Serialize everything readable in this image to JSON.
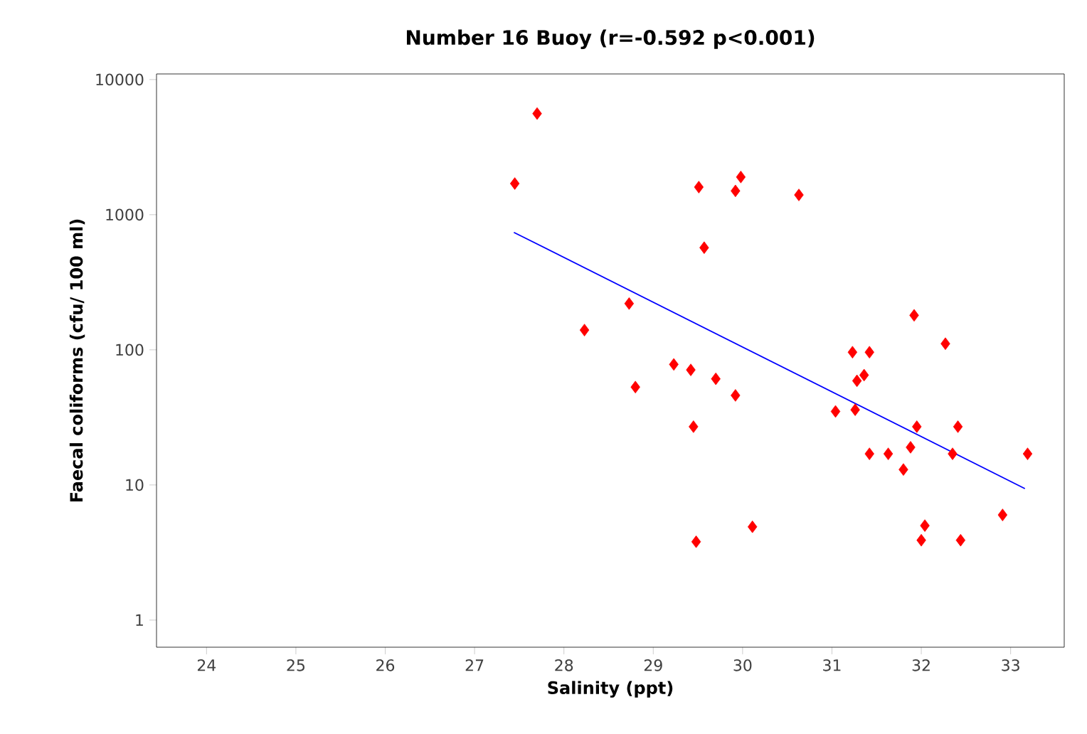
{
  "chart_data": {
    "type": "scatter",
    "title": "Number 16 Buoy (r=-0.592 p<0.001)",
    "xlabel": "Salinity (ppt)",
    "ylabel": "Faecal coliforms (cfu/ 100 ml)",
    "log": "y",
    "marker": "diamond",
    "xlim": [
      23.44,
      33.6
    ],
    "xticks": [
      24,
      25,
      26,
      27,
      28,
      29,
      30,
      31,
      32,
      33
    ],
    "ylim": [
      0.63,
      11000
    ],
    "yticks": [
      1,
      10,
      100,
      1000,
      10000
    ],
    "series": [
      {
        "color": "#ff0000",
        "x": [
          27.7,
          27.45,
          29.51,
          29.98,
          29.92,
          30.63,
          29.57,
          28.73,
          28.23,
          28.8,
          29.23,
          29.42,
          29.7,
          29.92,
          29.45,
          29.48,
          30.11,
          31.92,
          32.27,
          31.23,
          31.42,
          31.36,
          31.28,
          31.04,
          31.26,
          31.95,
          32.41,
          31.42,
          31.63,
          31.88,
          32.35,
          33.19,
          31.8,
          32.91,
          32.04,
          32.0,
          32.44
        ],
        "values": [
          5600,
          1700,
          1600,
          1900,
          1500,
          1400,
          570,
          220,
          140,
          53,
          78,
          71,
          61,
          46,
          27,
          3.8,
          4.9,
          180,
          111,
          96,
          96,
          65,
          59,
          35,
          36,
          27,
          27,
          17,
          17,
          19,
          17,
          17,
          13,
          6,
          5,
          3.9,
          3.9
        ]
      },
      {
        "type": "line",
        "marker": "none",
        "color": "#0000ff",
        "x": [
          27.44,
          33.16
        ],
        "values": [
          740,
          9.4
        ]
      }
    ]
  }
}
